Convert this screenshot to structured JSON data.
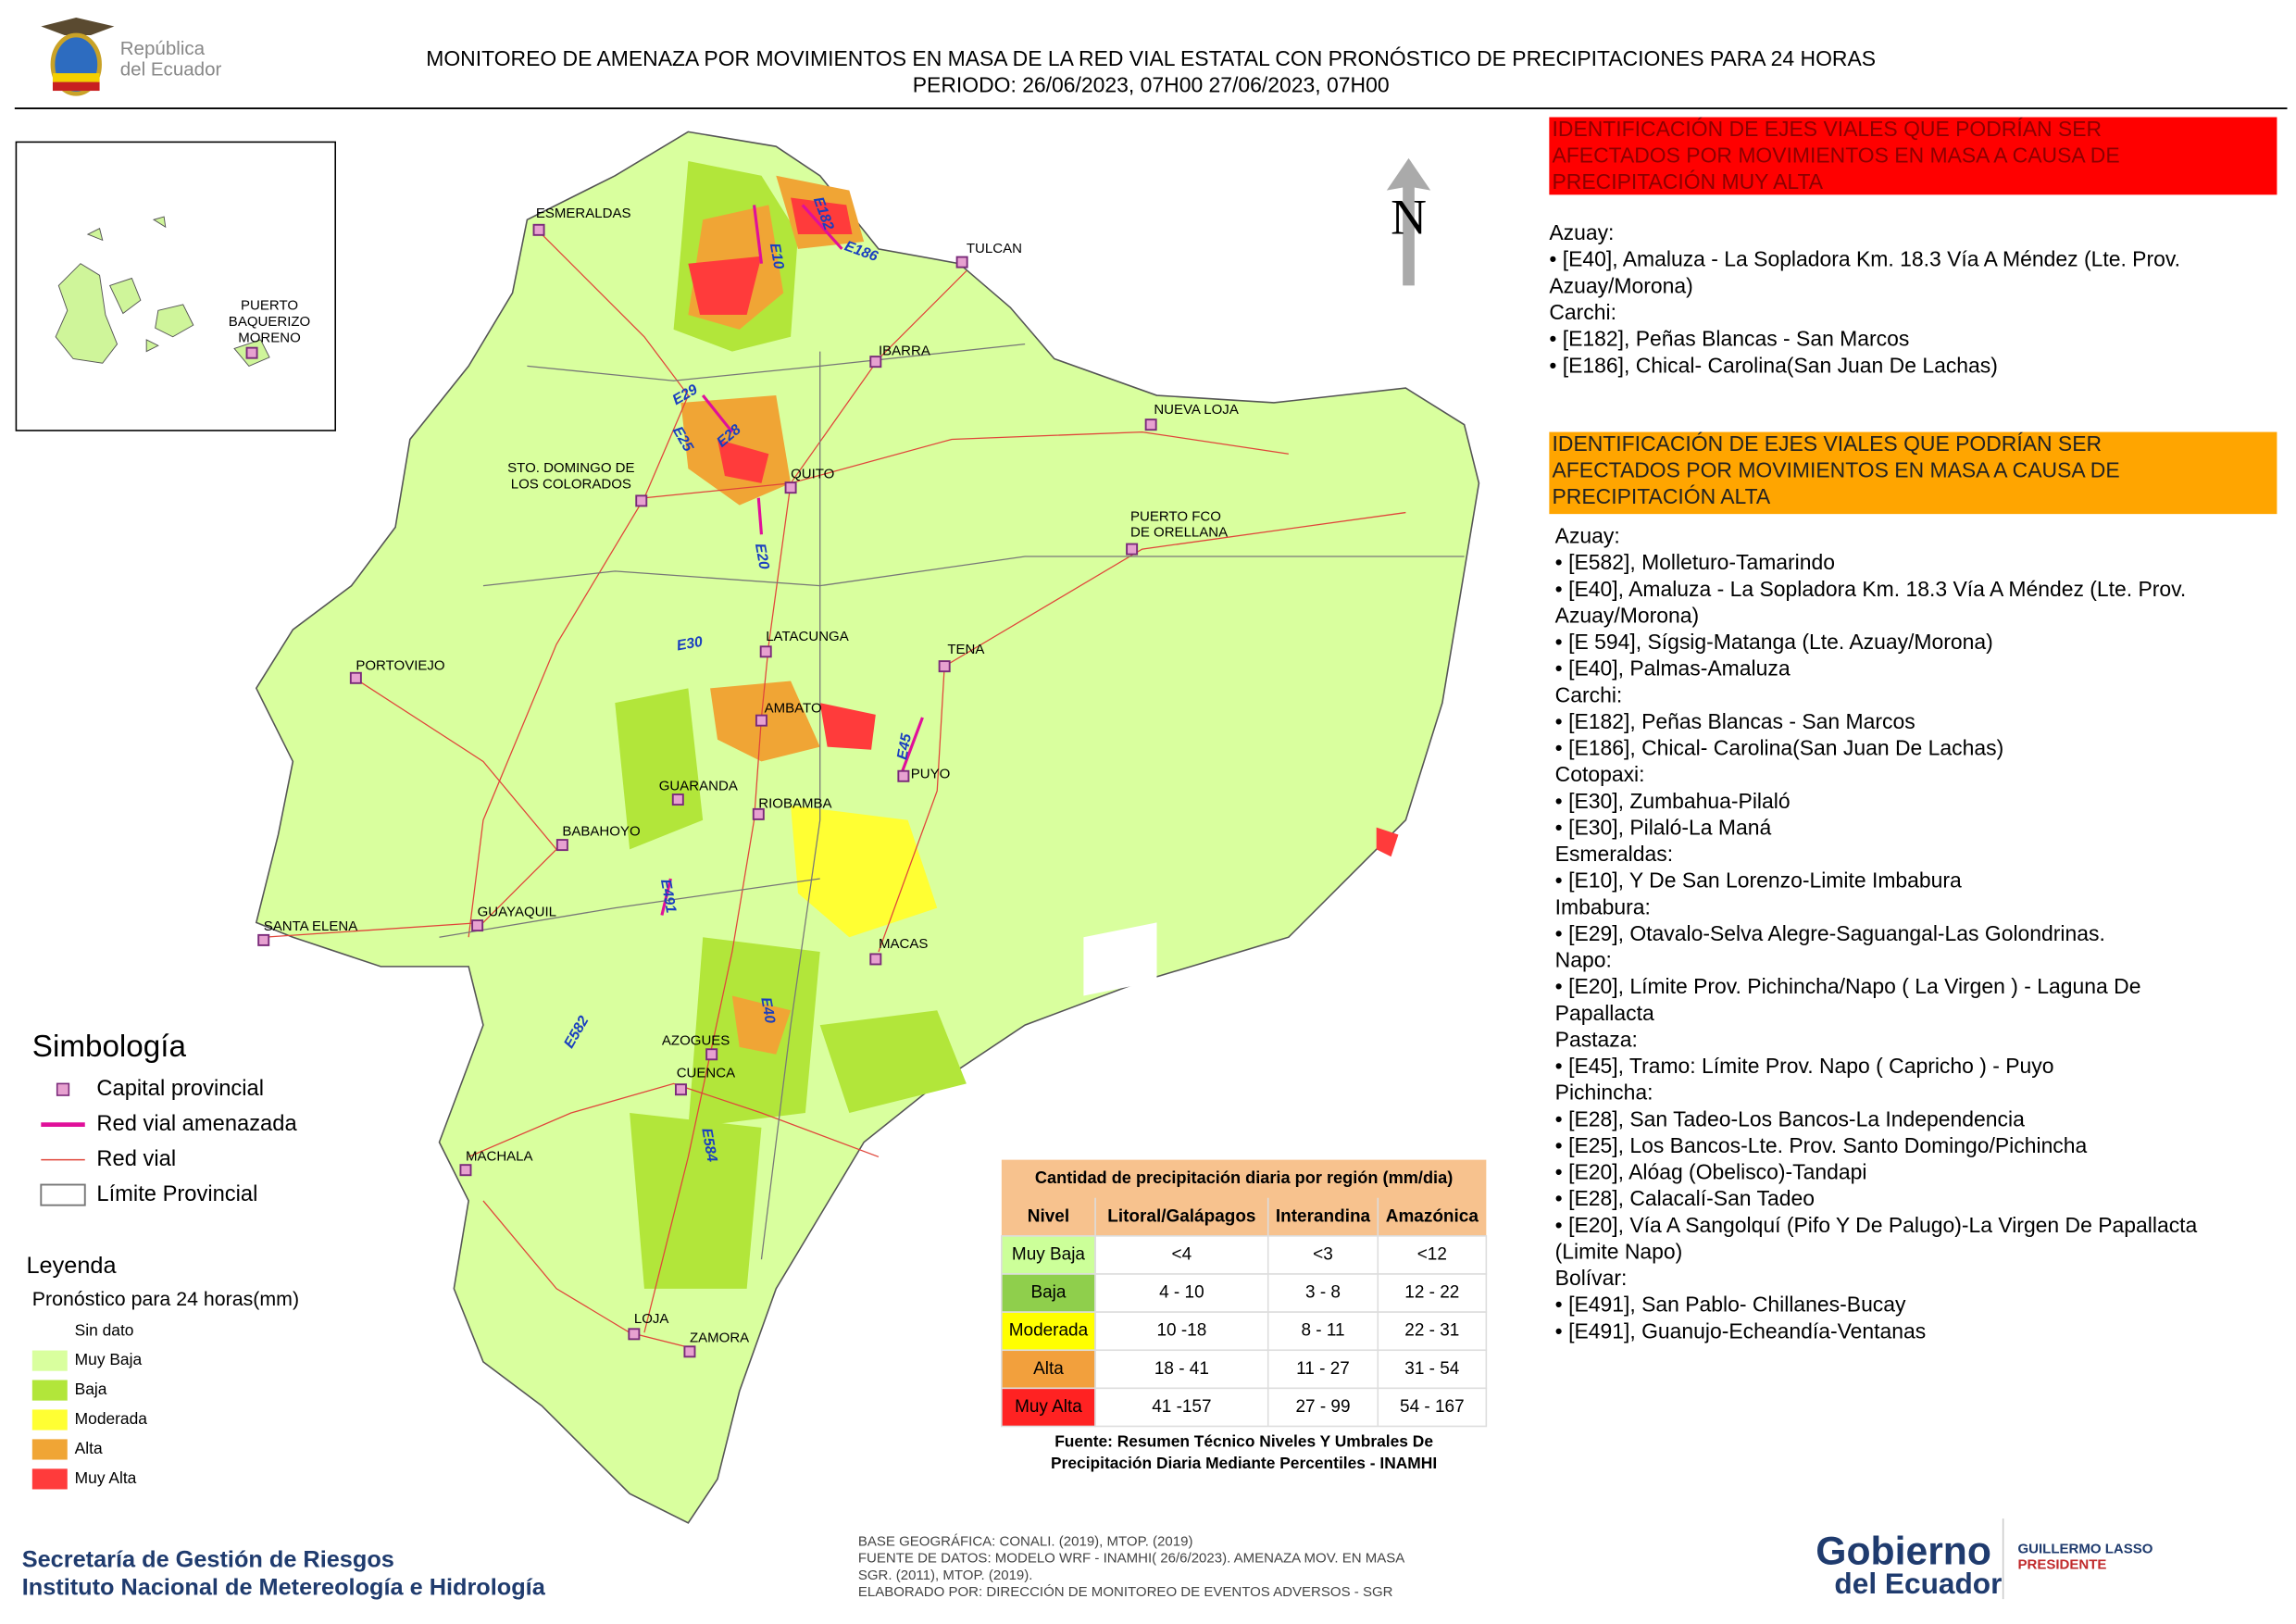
{
  "header": {
    "logo_text": [
      "República",
      "del Ecuador"
    ],
    "title": "MONITOREO DE AMENAZA POR MOVIMIENTOS EN MASA DE LA RED VIAL  ESTATAL  CON PRONÓSTICO  DE  PRECIPITACIONES PARA 24 HORAS",
    "period": "PERIODO: 26/06/2023, 07H00 27/06/2023, 07H00"
  },
  "north": "N",
  "cities": [
    [
      "ESMERALDAS"
    ],
    [
      "TULCAN"
    ],
    [
      "IBARRA"
    ],
    [
      "NUEVA LOJA"
    ],
    [
      "STO. DOMINGO DE",
      "LOS COLORADOS"
    ],
    [
      "QUITO"
    ],
    [
      "PUERTO FCO",
      "DE ORELLANA"
    ],
    [
      "LATACUNGA"
    ],
    [
      "TENA"
    ],
    [
      "PORTOVIEJO"
    ],
    [
      "AMBATO"
    ],
    [
      "PUYO"
    ],
    [
      "GUARANDA"
    ],
    [
      "RIOBAMBA"
    ],
    [
      "BABAHOYO"
    ],
    [
      "SANTA ELENA"
    ],
    [
      "GUAYAQUIL"
    ],
    [
      "MACAS"
    ],
    [
      "AZOGUES"
    ],
    [
      "CUENCA"
    ],
    [
      "MACHALA"
    ],
    [
      "LOJA"
    ],
    [
      "ZAMORA"
    ],
    [
      "PUERTO",
      "BAQUERIZO",
      "MORENO"
    ]
  ],
  "roads": [
    "E182",
    "E186",
    "E10",
    "E29",
    "E25",
    "E28",
    "E20",
    "E30",
    "E45",
    "E491",
    "E582",
    "E40",
    "E584"
  ],
  "legend": {
    "title": "Simbología",
    "items": [
      "Capital provincial",
      "Red vial amenazada",
      "Red vial",
      "Límite Provincial"
    ],
    "leyenda_title": "Leyenda",
    "subtitle": "Pronóstico para 24 horas(mm)",
    "levels": [
      {
        "label": "Sin dato",
        "color": "#ffffff"
      },
      {
        "label": "Muy Baja",
        "color": "#d9ff9e"
      },
      {
        "label": "Baja",
        "color": "#b2e63a"
      },
      {
        "label": "Moderada",
        "color": "#ffff33"
      },
      {
        "label": "Alta",
        "color": "#f0a535"
      },
      {
        "label": "Muy Alta",
        "color": "#ff3b3b"
      }
    ]
  },
  "table": {
    "title": "Cantidad de precipitación diaria por región (mm/dia)",
    "header": [
      "Nivel",
      "Litoral/Galápagos",
      "Interandina",
      "Amazónica"
    ],
    "rows": [
      {
        "cells": [
          "Muy Baja",
          "<4",
          "<3",
          "<12"
        ],
        "color": "#ccff99"
      },
      {
        "cells": [
          "Baja",
          "4 - 10",
          "3 - 8",
          "12 - 22"
        ],
        "color": "#8fcf4c"
      },
      {
        "cells": [
          "Moderada",
          "10 -18",
          "8 - 11",
          "22 - 31"
        ],
        "color": "#ffff00"
      },
      {
        "cells": [
          "Alta",
          "18 - 41",
          "11 - 27",
          "31 - 54"
        ],
        "color": "#f2a03d"
      },
      {
        "cells": [
          "Muy Alta",
          "41 -157",
          "27 - 99",
          "54 - 167"
        ],
        "color": "#ff2222"
      }
    ],
    "source": [
      "Fuente: Resumen Técnico Niveles Y Umbrales De",
      "Precipitación Diaria Mediante Percentiles - INAMHI"
    ]
  },
  "panels": [
    {
      "title": [
        "IDENTIFICACIÓN DE EJES VIALES QUE PODRÍAN SER",
        "AFECTADOS POR MOVIMIENTOS EN MASA A CAUSA DE",
        "PRECIPITACIÓN MUY ALTA"
      ],
      "color": "#ff0000",
      "lines": [
        "Azuay:",
        "• [E40], Amaluza - La Sopladora Km. 18.3 Vía A Méndez (Lte. Prov.",
        "Azuay/Morona)",
        "Carchi:",
        "• [E182], Peñas Blancas - San Marcos",
        "• [E186], Chical- Carolina(San Juan De Lachas)"
      ]
    },
    {
      "title": [
        "IDENTIFICACIÓN DE EJES VIALES QUE PODRÍAN SER",
        "AFECTADOS POR MOVIMIENTOS EN MASA A CAUSA DE",
        "PRECIPITACIÓN  ALTA"
      ],
      "color": "#ffa500",
      "lines": [
        "Azuay:",
        "• [E582], Molleturo-Tamarindo",
        "• [E40], Amaluza - La Sopladora Km. 18.3 Vía A Méndez (Lte. Prov.",
        "Azuay/Morona)",
        "• [E 594], Sígsig-Matanga (Lte. Azuay/Morona)",
        "• [E40], Palmas-Amaluza",
        "Carchi:",
        "• [E182], Peñas Blancas - San Marcos",
        "• [E186], Chical- Carolina(San Juan De Lachas)",
        "Cotopaxi:",
        "• [E30], Zumbahua-Pilaló",
        "• [E30], Pilaló-La Maná",
        "Esmeraldas:",
        "• [E10], Y De San Lorenzo-Limite Imbabura",
        "Imbabura:",
        "• [E29], Otavalo-Selva Alegre-Saguangal-Las Golondrinas.",
        "Napo:",
        "• [E20], Límite Prov. Pichincha/Napo ( La Virgen ) - Laguna De",
        "Papallacta",
        "Pastaza:",
        "• [E45], Tramo: Límite Prov. Napo ( Capricho ) - Puyo",
        "Pichincha:",
        "• [E28], San Tadeo-Los Bancos-La Independencia",
        "• [E25], Los Bancos-Lte. Prov. Santo Domingo/Pichincha",
        "• [E20], Alóag (Obelisco)-Tandapi",
        "• [E28], Calacalí-San Tadeo",
        "• [E20], Vía A Sangolquí (Pifo Y De Palugo)-La Virgen De Papallacta",
        "(Limite Napo)",
        "Bolívar:",
        "• [E491], San Pablo- Chillanes-Bucay",
        "• [E491], Guanujo-Echeandía-Ventanas"
      ]
    }
  ],
  "footer": {
    "org": [
      "Secretaría de Gestión de Riesgos",
      "Instituto Nacional de Metereología e Hidrología"
    ],
    "credits": [
      "BASE GEOGRÁFICA: CONALI. (2019), MTOP. (2019)",
      "FUENTE DE DATOS: MODELO WRF - INAMHI( 26/6/2023).  AMENAZA MOV. EN MASA",
      "SGR. (2011), MTOP. (2019).",
      "ELABORADO POR: DIRECCIÓN DE MONITOREO DE EVENTOS ADVERSOS - SGR"
    ],
    "gov": [
      "Gobierno",
      "del Ecuador",
      "GUILLERMO LASSO",
      "PRESIDENTE"
    ]
  }
}
